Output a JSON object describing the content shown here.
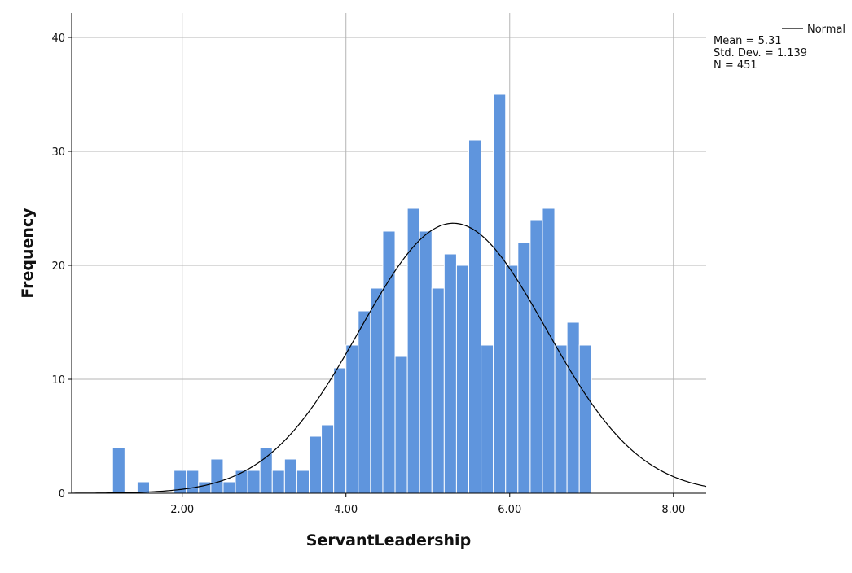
{
  "chart_data": {
    "type": "bar",
    "subtype": "histogram",
    "xlabel": "ServantLeadership",
    "ylabel": "Frequency",
    "xlim": [
      0.65,
      8.4
    ],
    "ylim": [
      0,
      40
    ],
    "x_ticks": [
      2,
      4,
      6,
      8
    ],
    "x_tick_labels": [
      "2.00",
      "4.00",
      "6.00",
      "8.00"
    ],
    "y_ticks": [
      0,
      10,
      20,
      30,
      40
    ],
    "y_tick_labels": [
      "0",
      "10",
      "20",
      "30",
      "40"
    ],
    "grid": true,
    "bin_width": 0.15,
    "bins": [
      {
        "x0": 1.15,
        "x1": 1.3,
        "count": 4
      },
      {
        "x0": 1.3,
        "x1": 1.45,
        "count": 0
      },
      {
        "x0": 1.45,
        "x1": 1.6,
        "count": 1
      },
      {
        "x0": 1.6,
        "x1": 1.75,
        "count": 0
      },
      {
        "x0": 1.75,
        "x1": 1.9,
        "count": 0
      },
      {
        "x0": 1.9,
        "x1": 2.05,
        "count": 2
      },
      {
        "x0": 2.05,
        "x1": 2.2,
        "count": 2
      },
      {
        "x0": 2.2,
        "x1": 2.35,
        "count": 1
      },
      {
        "x0": 2.35,
        "x1": 2.5,
        "count": 3
      },
      {
        "x0": 2.5,
        "x1": 2.65,
        "count": 1
      },
      {
        "x0": 2.65,
        "x1": 2.8,
        "count": 2
      },
      {
        "x0": 2.8,
        "x1": 2.95,
        "count": 2
      },
      {
        "x0": 2.95,
        "x1": 3.1,
        "count": 4
      },
      {
        "x0": 3.1,
        "x1": 3.25,
        "count": 2
      },
      {
        "x0": 3.25,
        "x1": 3.4,
        "count": 3
      },
      {
        "x0": 3.4,
        "x1": 3.55,
        "count": 2
      },
      {
        "x0": 3.55,
        "x1": 3.7,
        "count": 5
      },
      {
        "x0": 3.7,
        "x1": 3.85,
        "count": 6
      },
      {
        "x0": 3.85,
        "x1": 4.0,
        "count": 11
      },
      {
        "x0": 4.0,
        "x1": 4.15,
        "count": 13
      },
      {
        "x0": 4.15,
        "x1": 4.3,
        "count": 16
      },
      {
        "x0": 4.3,
        "x1": 4.45,
        "count": 18
      },
      {
        "x0": 4.45,
        "x1": 4.6,
        "count": 23
      },
      {
        "x0": 4.6,
        "x1": 4.75,
        "count": 12
      },
      {
        "x0": 4.75,
        "x1": 4.9,
        "count": 25
      },
      {
        "x0": 4.9,
        "x1": 5.05,
        "count": 23
      },
      {
        "x0": 5.05,
        "x1": 5.2,
        "count": 18
      },
      {
        "x0": 5.2,
        "x1": 5.35,
        "count": 21
      },
      {
        "x0": 5.35,
        "x1": 5.5,
        "count": 20
      },
      {
        "x0": 5.5,
        "x1": 5.65,
        "count": 31
      },
      {
        "x0": 5.65,
        "x1": 5.8,
        "count": 13
      },
      {
        "x0": 5.8,
        "x1": 5.95,
        "count": 35
      },
      {
        "x0": 5.95,
        "x1": 6.1,
        "count": 20
      },
      {
        "x0": 6.1,
        "x1": 6.25,
        "count": 22
      },
      {
        "x0": 6.25,
        "x1": 6.4,
        "count": 24
      },
      {
        "x0": 6.4,
        "x1": 6.55,
        "count": 25
      },
      {
        "x0": 6.55,
        "x1": 6.7,
        "count": 13
      },
      {
        "x0": 6.7,
        "x1": 6.85,
        "count": 15
      },
      {
        "x0": 6.85,
        "x1": 7.0,
        "count": 13
      }
    ],
    "normal_curve": {
      "mean": 5.31,
      "std_dev": 1.139,
      "n": 451
    },
    "legend": {
      "line_label": "Normal",
      "stats": [
        "Mean = 5.31",
        "Std. Dev. = 1.139",
        "N = 451"
      ],
      "placement": "top-right"
    },
    "colors": {
      "bar_fill": "#5f95dd",
      "bar_stroke": "#ffffff",
      "curve": "#000000",
      "grid": "#b4b4b4",
      "axis": "#000000"
    }
  }
}
